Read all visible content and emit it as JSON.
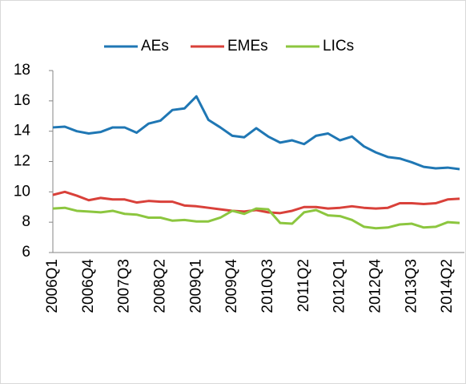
{
  "chart_data": {
    "type": "line",
    "categories": [
      "2006Q1",
      null,
      null,
      "2006Q4",
      null,
      null,
      "2007Q3",
      null,
      null,
      "2008Q2",
      null,
      null,
      "2009Q1",
      null,
      null,
      "2009Q4",
      null,
      null,
      "2010Q3",
      null,
      null,
      "2011Q2",
      null,
      null,
      "2012Q1",
      null,
      null,
      "2012Q4",
      null,
      null,
      "2013Q3",
      null,
      null,
      "2014Q2",
      null
    ],
    "series": [
      {
        "name": "AEs",
        "color": "#1f77b4",
        "values": [
          14.25,
          14.3,
          14.0,
          13.85,
          13.95,
          14.25,
          14.25,
          13.9,
          14.5,
          14.7,
          15.4,
          15.5,
          16.3,
          14.75,
          14.25,
          13.7,
          13.6,
          14.2,
          13.65,
          13.25,
          13.4,
          13.15,
          13.7,
          13.85,
          13.4,
          13.65,
          13.0,
          12.6,
          12.3,
          12.2,
          11.95,
          11.65,
          11.55,
          11.6,
          11.5
        ]
      },
      {
        "name": "EMEs",
        "color": "#d9413a",
        "values": [
          9.8,
          10.0,
          9.75,
          9.45,
          9.6,
          9.5,
          9.5,
          9.3,
          9.4,
          9.35,
          9.35,
          9.1,
          9.05,
          8.95,
          8.85,
          8.75,
          8.7,
          8.8,
          8.65,
          8.6,
          8.75,
          9.0,
          9.0,
          8.9,
          8.95,
          9.05,
          8.95,
          8.9,
          8.95,
          9.25,
          9.25,
          9.2,
          9.25,
          9.5,
          9.55
        ]
      },
      {
        "name": "LICs",
        "color": "#8cc63f",
        "values": [
          8.9,
          8.95,
          8.75,
          8.7,
          8.65,
          8.75,
          8.55,
          8.5,
          8.3,
          8.3,
          8.1,
          8.15,
          8.05,
          8.05,
          8.3,
          8.75,
          8.55,
          8.9,
          8.85,
          7.95,
          7.9,
          8.65,
          8.8,
          8.45,
          8.4,
          8.15,
          7.7,
          7.6,
          7.65,
          7.85,
          7.9,
          7.65,
          7.7,
          8.0,
          7.95
        ]
      }
    ],
    "ylim": [
      6,
      18
    ],
    "yticks": [
      6,
      8,
      10,
      12,
      14,
      16,
      18
    ],
    "grid": false,
    "legend": "top"
  }
}
